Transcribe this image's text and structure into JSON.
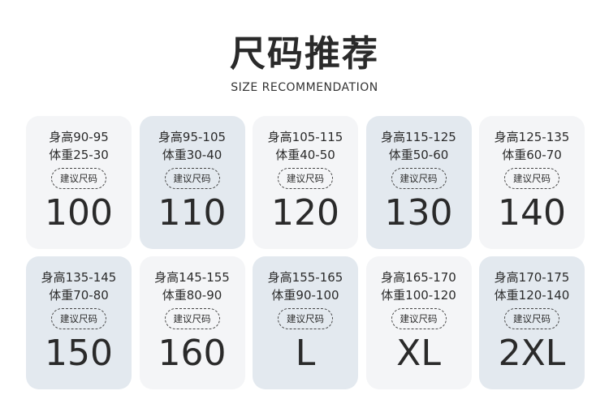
{
  "header": {
    "title": "尺码推荐",
    "subtitle": "SIZE RECOMMENDATION"
  },
  "badge_label": "建议尺码",
  "colors": {
    "light_card": "#f4f5f7",
    "blue_card": "#e3e9ef",
    "text": "#2b2b2b"
  },
  "cards": [
    {
      "height": "身高90-95",
      "weight": "体重25-30",
      "size": "100",
      "tone": "light"
    },
    {
      "height": "身高95-105",
      "weight": "体重30-40",
      "size": "110",
      "tone": "blue"
    },
    {
      "height": "身高105-115",
      "weight": "体重40-50",
      "size": "120",
      "tone": "light"
    },
    {
      "height": "身高115-125",
      "weight": "体重50-60",
      "size": "130",
      "tone": "blue"
    },
    {
      "height": "身高125-135",
      "weight": "体重60-70",
      "size": "140",
      "tone": "light"
    },
    {
      "height": "身高135-145",
      "weight": "体重70-80",
      "size": "150",
      "tone": "blue"
    },
    {
      "height": "身高145-155",
      "weight": "体重80-90",
      "size": "160",
      "tone": "light"
    },
    {
      "height": "身高155-165",
      "weight": "体重90-100",
      "size": "L",
      "tone": "blue"
    },
    {
      "height": "身高165-170",
      "weight": "体重100-120",
      "size": "XL",
      "tone": "light"
    },
    {
      "height": "身高170-175",
      "weight": "体重120-140",
      "size": "2XL",
      "tone": "blue"
    }
  ]
}
